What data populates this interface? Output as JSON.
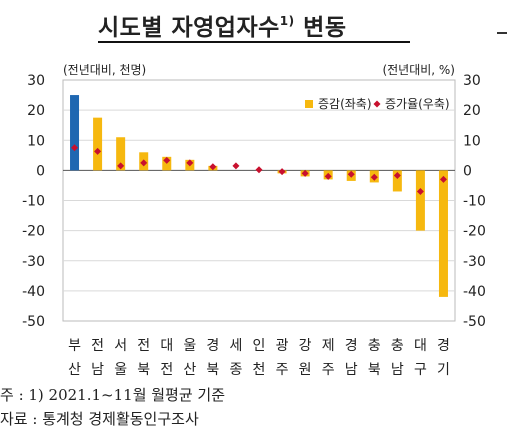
{
  "title": "시도별 자영업자수",
  "title_sup": "1)",
  "title_suffix": "변동",
  "notes": {
    "note1": " 주 : 1) 2021.1~11월 월평균 기준",
    "source": "자료 : 통계청 경제활동인구조사"
  },
  "colors": {
    "highlight_bar": "#1f67b1",
    "bar": "#f6b80f",
    "rate_marker": "#c8102e",
    "grid": "#d9d9d9",
    "axis": "#555555"
  },
  "chart_data": {
    "type": "bar",
    "left_unit": "(전년대비, 천명)",
    "right_unit": "(전년대비, %)",
    "ylim": [
      -50,
      30
    ],
    "yticks": [
      30,
      20,
      10,
      0,
      -10,
      -20,
      -30,
      -40,
      -50
    ],
    "y2lim": [
      -50,
      30
    ],
    "y2ticks": [
      30,
      20,
      10,
      0,
      -10,
      -20,
      -30,
      -40,
      -50
    ],
    "grid": true,
    "legend_position": "top-right",
    "categories": [
      [
        "부",
        "산"
      ],
      [
        "전",
        "남"
      ],
      [
        "서",
        "울"
      ],
      [
        "전",
        "북"
      ],
      [
        "대",
        "전"
      ],
      [
        "울",
        "산"
      ],
      [
        "경",
        "북"
      ],
      [
        "세",
        "종"
      ],
      [
        "인",
        "천"
      ],
      [
        "광",
        "주"
      ],
      [
        "강",
        "원"
      ],
      [
        "제",
        "주"
      ],
      [
        "경",
        "남"
      ],
      [
        "충",
        "북"
      ],
      [
        "충",
        "남"
      ],
      [
        "대",
        "구"
      ],
      [
        "경",
        "기"
      ]
    ],
    "series": [
      {
        "name": "증감(좌축)",
        "kind": "bar",
        "axis": "left",
        "highlight_index": 0,
        "values": [
          25,
          17.5,
          11,
          6,
          4.5,
          3.5,
          1.5,
          0,
          0,
          -1,
          -2,
          -3,
          -3.5,
          -4,
          -7,
          -20,
          -42
        ]
      },
      {
        "name": "증가율(우축)",
        "kind": "marker",
        "axis": "right",
        "values": [
          7.5,
          6.3,
          1.5,
          2.5,
          3.3,
          2.5,
          1.2,
          1.5,
          0.2,
          -0.4,
          -1,
          -2,
          -1.3,
          -2.3,
          -1.7,
          -7,
          -3
        ]
      }
    ]
  }
}
